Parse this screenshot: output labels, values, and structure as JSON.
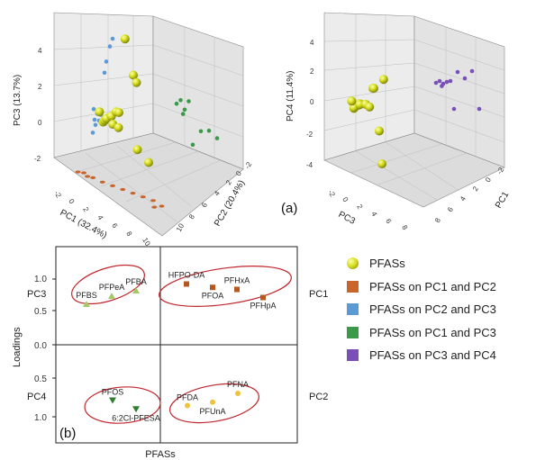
{
  "chart_data": [
    {
      "type": "scatter",
      "panel_label": "(a)",
      "axes": {
        "x_label": "PC1 (32.4%)",
        "y_label": "PC2 (20.4%)",
        "z_label": "PC3 (13.7%)",
        "x_ticks": [
          "-2",
          "0",
          "2",
          "4",
          "6",
          "8",
          "10"
        ],
        "y_ticks": [
          "-2",
          "0",
          "2",
          "4",
          "6",
          "8",
          "10"
        ],
        "z_ticks": [
          "-2",
          "0",
          "2",
          "4"
        ]
      },
      "series": [
        {
          "name": "PFASs",
          "values": [
            [
              0.5,
              0.4,
              0.2
            ],
            [
              0.8,
              0.7,
              0.5
            ],
            [
              0.2,
              0.9,
              0.1
            ],
            [
              1.0,
              0.2,
              0.6
            ],
            [
              0.6,
              1.2,
              0.4
            ],
            [
              1.3,
              0.6,
              0.3
            ],
            [
              0.4,
              0.1,
              0.8
            ],
            [
              1.5,
              1.0,
              0.1
            ],
            [
              0.9,
              1.4,
              0.7
            ],
            [
              2.0,
              0.5,
              1.2
            ],
            [
              3.0,
              1.0,
              3.5
            ],
            [
              1.5,
              3.0,
              2.2
            ],
            [
              5.0,
              0.5,
              -0.6
            ],
            [
              2.5,
              2.0,
              -1.0
            ],
            [
              0.8,
              2.5,
              4.5
            ]
          ]
        },
        {
          "name": "PFASs on PC1 and PC2",
          "values": [
            [
              0.5,
              0.5
            ],
            [
              1.0,
              1.0
            ],
            [
              1.5,
              0.8
            ],
            [
              2.0,
              1.2
            ],
            [
              3.0,
              1.5
            ],
            [
              4.0,
              2.0
            ],
            [
              5.0,
              2.5
            ],
            [
              6.0,
              3.0
            ],
            [
              7.0,
              3.5
            ],
            [
              8.0,
              4.0
            ],
            [
              9.0,
              4.0
            ],
            [
              8.5,
              3.0
            ]
          ]
        },
        {
          "name": "PFASs on PC2 and PC3",
          "values": [
            [
              0.5,
              0.3
            ],
            [
              0.8,
              0.6
            ],
            [
              1.0,
              0.2
            ],
            [
              0.4,
              0.9
            ],
            [
              1.2,
              0.5
            ],
            [
              0.6,
              0.0
            ],
            [
              1.6,
              2.8
            ],
            [
              1.8,
              3.4
            ],
            [
              2.2,
              4.2
            ],
            [
              2.5,
              4.6
            ],
            [
              0.3,
              -0.4
            ]
          ]
        },
        {
          "name": "PFASs on PC1 and PC3",
          "values": [
            [
              2.0,
              1.6
            ],
            [
              2.5,
              1.9
            ],
            [
              3.0,
              1.4
            ],
            [
              3.5,
              2.0
            ],
            [
              2.8,
              1.1
            ],
            [
              5.0,
              0.4
            ],
            [
              6.0,
              0.6
            ],
            [
              7.0,
              0.3
            ],
            [
              4.0,
              -0.6
            ]
          ]
        }
      ]
    },
    {
      "type": "scatter",
      "axes": {
        "x_label": "PC1",
        "y_label": "PC3",
        "z_label": "PC4 (11.4%)",
        "x_ticks": [
          "-2",
          "0",
          "2",
          "4",
          "6",
          "8"
        ],
        "y_ticks": [
          "-2",
          "0",
          "2",
          "4",
          "6",
          "8"
        ],
        "z_ticks": [
          "-4",
          "-2",
          "0",
          "2",
          "4"
        ]
      },
      "series": [
        {
          "name": "PFASs",
          "values": [
            [
              0.5,
              0.3,
              0.1
            ],
            [
              0.8,
              0.6,
              0.3
            ],
            [
              0.2,
              0.9,
              0.0
            ],
            [
              1.1,
              0.2,
              0.5
            ],
            [
              0.6,
              1.2,
              0.2
            ],
            [
              1.4,
              0.7,
              0.4
            ],
            [
              0.4,
              0.1,
              0.6
            ],
            [
              1.6,
              1.0,
              0.2
            ],
            [
              2.2,
              0.4,
              1.6
            ],
            [
              3.0,
              0.8,
              2.2
            ],
            [
              1.0,
              3.0,
              1.0
            ],
            [
              2.0,
              2.0,
              -1.5
            ],
            [
              2.5,
              1.5,
              -3.5
            ]
          ]
        },
        {
          "name": "PFASs on PC3 and PC4",
          "values": [
            [
              2.0,
              1.2
            ],
            [
              2.5,
              1.5
            ],
            [
              3.0,
              1.3
            ],
            [
              3.5,
              1.6
            ],
            [
              2.8,
              1.0
            ],
            [
              4.0,
              1.8
            ],
            [
              5.0,
              3.0
            ],
            [
              6.0,
              2.5
            ],
            [
              7.0,
              3.5
            ],
            [
              4.5,
              -1.2
            ],
            [
              8.0,
              -0.5
            ]
          ]
        }
      ]
    },
    {
      "type": "scatter",
      "panel_label": "(b)",
      "xlabel": "PFASs",
      "ylabel": "Loadings",
      "row_labels": [
        "PC3",
        "PC4"
      ],
      "side_labels": [
        "PC1",
        "PC2"
      ],
      "center_tick": "0.0",
      "top_ticks": [
        "1.0",
        "0.5"
      ],
      "bottom_ticks": [
        "0.5",
        "1.0"
      ],
      "points": [
        {
          "label": "PFBS",
          "x": 1,
          "loading": 0.6,
          "panel": "PC1-PC3",
          "color": "#a3c964",
          "marker": "triangle-up"
        },
        {
          "label": "PFPeA",
          "x": 2,
          "loading": 0.72,
          "panel": "PC1-PC3",
          "color": "#a3c964",
          "marker": "triangle-up"
        },
        {
          "label": "PFBA",
          "x": 3,
          "loading": 0.8,
          "panel": "PC1-PC3",
          "color": "#a3c964",
          "marker": "triangle-up"
        },
        {
          "label": "HFPO-DA",
          "x": 4,
          "loading": 0.9,
          "panel": "PC1",
          "color": "#b5571f",
          "marker": "square"
        },
        {
          "label": "PFOA",
          "x": 5,
          "loading": 0.85,
          "panel": "PC1",
          "color": "#b5571f",
          "marker": "square"
        },
        {
          "label": "PFHxA",
          "x": 6,
          "loading": 0.82,
          "panel": "PC1",
          "color": "#b5571f",
          "marker": "square"
        },
        {
          "label": "PFHpA",
          "x": 7,
          "loading": 0.7,
          "panel": "PC1",
          "color": "#b5571f",
          "marker": "square"
        },
        {
          "label": "PFOS",
          "x": 1,
          "loading": 0.82,
          "panel": "PC2-PC4",
          "color": "#2f7d2f",
          "marker": "triangle-down"
        },
        {
          "label": "6:2Cl-PFESA",
          "x": 2,
          "loading": 0.95,
          "panel": "PC2-PC4",
          "color": "#2f7d2f",
          "marker": "triangle-down"
        },
        {
          "label": "PFDA",
          "x": 3,
          "loading": 0.9,
          "panel": "PC2",
          "color": "#f0c23c",
          "marker": "circle"
        },
        {
          "label": "PFUnA",
          "x": 4,
          "loading": 0.85,
          "panel": "PC2",
          "color": "#f0c23c",
          "marker": "circle"
        },
        {
          "label": "PFNA",
          "x": 5,
          "loading": 0.72,
          "panel": "PC2",
          "color": "#f0c23c",
          "marker": "circle"
        }
      ]
    }
  ],
  "legend": [
    {
      "label": "PFASs",
      "color": "#d9e021",
      "marker": "sphere"
    },
    {
      "label": "PFASs on PC1 and PC2",
      "color": "#c9642a",
      "marker": "square"
    },
    {
      "label": "PFASs on PC2 and PC3",
      "color": "#5b9bd5",
      "marker": "square"
    },
    {
      "label": "PFASs on PC1 and PC3",
      "color": "#3a9a4a",
      "marker": "square"
    },
    {
      "label": "PFASs on PC3 and PC4",
      "color": "#7b4fb8",
      "marker": "square"
    }
  ]
}
